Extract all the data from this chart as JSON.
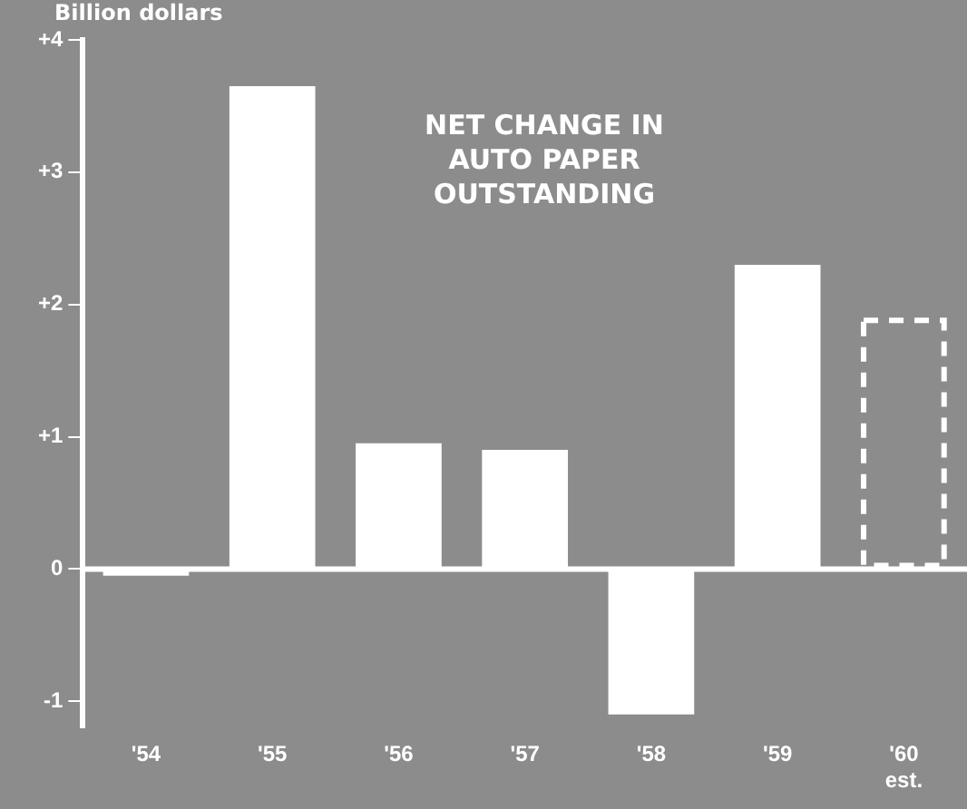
{
  "chart_data": {
    "type": "bar",
    "title": "NET CHANGE IN\nAUTO PAPER\nOUTSTANDING",
    "ylabel": "Billion dollars",
    "categories": [
      "'54",
      "'55",
      "'56",
      "'57",
      "'58",
      "'59",
      "'60\nest."
    ],
    "series": [
      {
        "color": "#ffffff",
        "values": [
          -0.05,
          3.65,
          0.95,
          0.9,
          -1.1,
          2.3,
          null
        ]
      },
      {
        "color": "#ffffff",
        "line_style": "dashed",
        "values": [
          null,
          null,
          null,
          null,
          null,
          null,
          1.9
        ]
      }
    ],
    "ylim": [
      -1.2,
      4
    ],
    "yticks": [
      {
        "value": -1,
        "label": "-1"
      },
      {
        "value": 0,
        "label": "0"
      },
      {
        "value": 1,
        "label": "+1"
      },
      {
        "value": 2,
        "label": "+2"
      },
      {
        "value": 3,
        "label": "+3"
      },
      {
        "value": 4,
        "label": "+4"
      }
    ],
    "ref_lines": [
      {
        "axis": "y",
        "value": 0,
        "color": "#ffffff"
      }
    ],
    "grid": false,
    "legend": false
  }
}
